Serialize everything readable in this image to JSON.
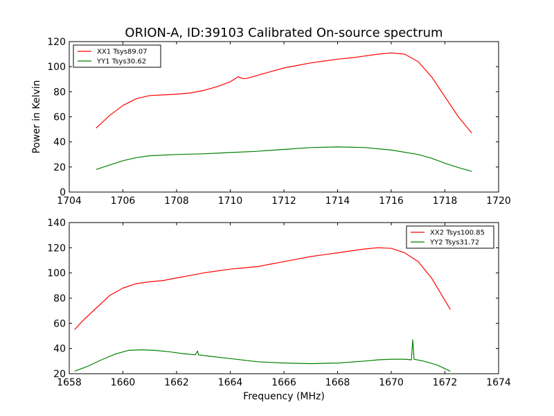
{
  "chart_data": [
    {
      "type": "line",
      "title": "ORION-A, ID:39103 Calibrated On-source spectrum",
      "xlabel": "",
      "ylabel": "Power in Kelvin",
      "xlim": [
        1704,
        1720
      ],
      "ylim": [
        0,
        120
      ],
      "xticks": [
        "1704",
        "1706",
        "1708",
        "1710",
        "1712",
        "1714",
        "1716",
        "1718",
        "1720"
      ],
      "yticks": [
        "0",
        "20",
        "40",
        "60",
        "80",
        "100",
        "120"
      ],
      "legend": "top-left",
      "series": [
        {
          "name": "XX1 Tsys89.07",
          "color": "#ff0000",
          "x": [
            1705.0,
            1705.5,
            1706.0,
            1706.5,
            1707.0,
            1707.5,
            1708.0,
            1708.5,
            1709.0,
            1709.5,
            1710.0,
            1710.3,
            1710.45,
            1710.6,
            1711.0,
            1711.5,
            1712.0,
            1712.5,
            1713.0,
            1713.5,
            1714.0,
            1714.5,
            1715.0,
            1715.5,
            1716.0,
            1716.5,
            1717.0,
            1717.5,
            1718.0,
            1718.5,
            1719.0
          ],
          "y": [
            51,
            61,
            69,
            74.5,
            77,
            77.5,
            78,
            79,
            81,
            84,
            88,
            92,
            90.5,
            90.5,
            93,
            96,
            99,
            101,
            103,
            104.5,
            106,
            107,
            108.5,
            110,
            111,
            110,
            104,
            92,
            76,
            60,
            47
          ]
        },
        {
          "name": "YY1 Tsys30.62",
          "color": "#008000",
          "x": [
            1705.0,
            1705.5,
            1706.0,
            1706.5,
            1707.0,
            1708.0,
            1709.0,
            1710.0,
            1711.0,
            1712.0,
            1713.0,
            1714.0,
            1715.0,
            1716.0,
            1717.0,
            1717.5,
            1718.0,
            1718.5,
            1719.0
          ],
          "y": [
            18,
            21.5,
            25,
            27.5,
            29,
            30,
            30.5,
            31.5,
            32.5,
            34,
            35.5,
            36,
            35.5,
            33.5,
            30,
            27,
            23,
            19.5,
            16.5
          ]
        }
      ]
    },
    {
      "type": "line",
      "title": "",
      "xlabel": "Frequency (MHz)",
      "ylabel": "",
      "xlim": [
        1658,
        1674
      ],
      "ylim": [
        20,
        140
      ],
      "xticks": [
        "1658",
        "1660",
        "1662",
        "1664",
        "1666",
        "1668",
        "1670",
        "1672",
        "1674"
      ],
      "yticks": [
        "20",
        "40",
        "60",
        "80",
        "100",
        "120",
        "140"
      ],
      "legend": "top-right",
      "series": [
        {
          "name": "XX2 Tsys100.85",
          "color": "#ff0000",
          "x": [
            1658.2,
            1658.5,
            1659.0,
            1659.5,
            1660.0,
            1660.5,
            1661.0,
            1661.5,
            1662.0,
            1662.5,
            1663.0,
            1663.5,
            1664.0,
            1664.5,
            1665.0,
            1665.5,
            1666.0,
            1666.5,
            1667.0,
            1667.5,
            1668.0,
            1668.5,
            1669.0,
            1669.5,
            1670.0,
            1670.5,
            1671.0,
            1671.5,
            1672.2
          ],
          "y": [
            55,
            62,
            72,
            82,
            88,
            91.5,
            93,
            94,
            96,
            98,
            100,
            101.5,
            103,
            104,
            105,
            107,
            109,
            111,
            113,
            114.5,
            116,
            117.5,
            119,
            120,
            119.5,
            116,
            109,
            96,
            71
          ]
        },
        {
          "name": "YY2 Tsys31.72",
          "color": "#008000",
          "x": [
            1658.2,
            1658.7,
            1659.2,
            1659.7,
            1660.2,
            1660.7,
            1661.2,
            1661.7,
            1662.2,
            1662.7,
            1662.78,
            1662.82,
            1663.2,
            1664.0,
            1665.0,
            1666.0,
            1667.0,
            1668.0,
            1669.0,
            1669.5,
            1670.0,
            1670.5,
            1670.75,
            1670.8,
            1670.85,
            1671.2,
            1671.7,
            1672.2
          ],
          "y": [
            22,
            26,
            31,
            35.5,
            38.5,
            39,
            38.5,
            37.5,
            36,
            35,
            38,
            35,
            34,
            32,
            29.5,
            28.5,
            28,
            28.5,
            30,
            31,
            31.5,
            31.5,
            31,
            47,
            31.5,
            30,
            27,
            22
          ]
        }
      ]
    }
  ]
}
